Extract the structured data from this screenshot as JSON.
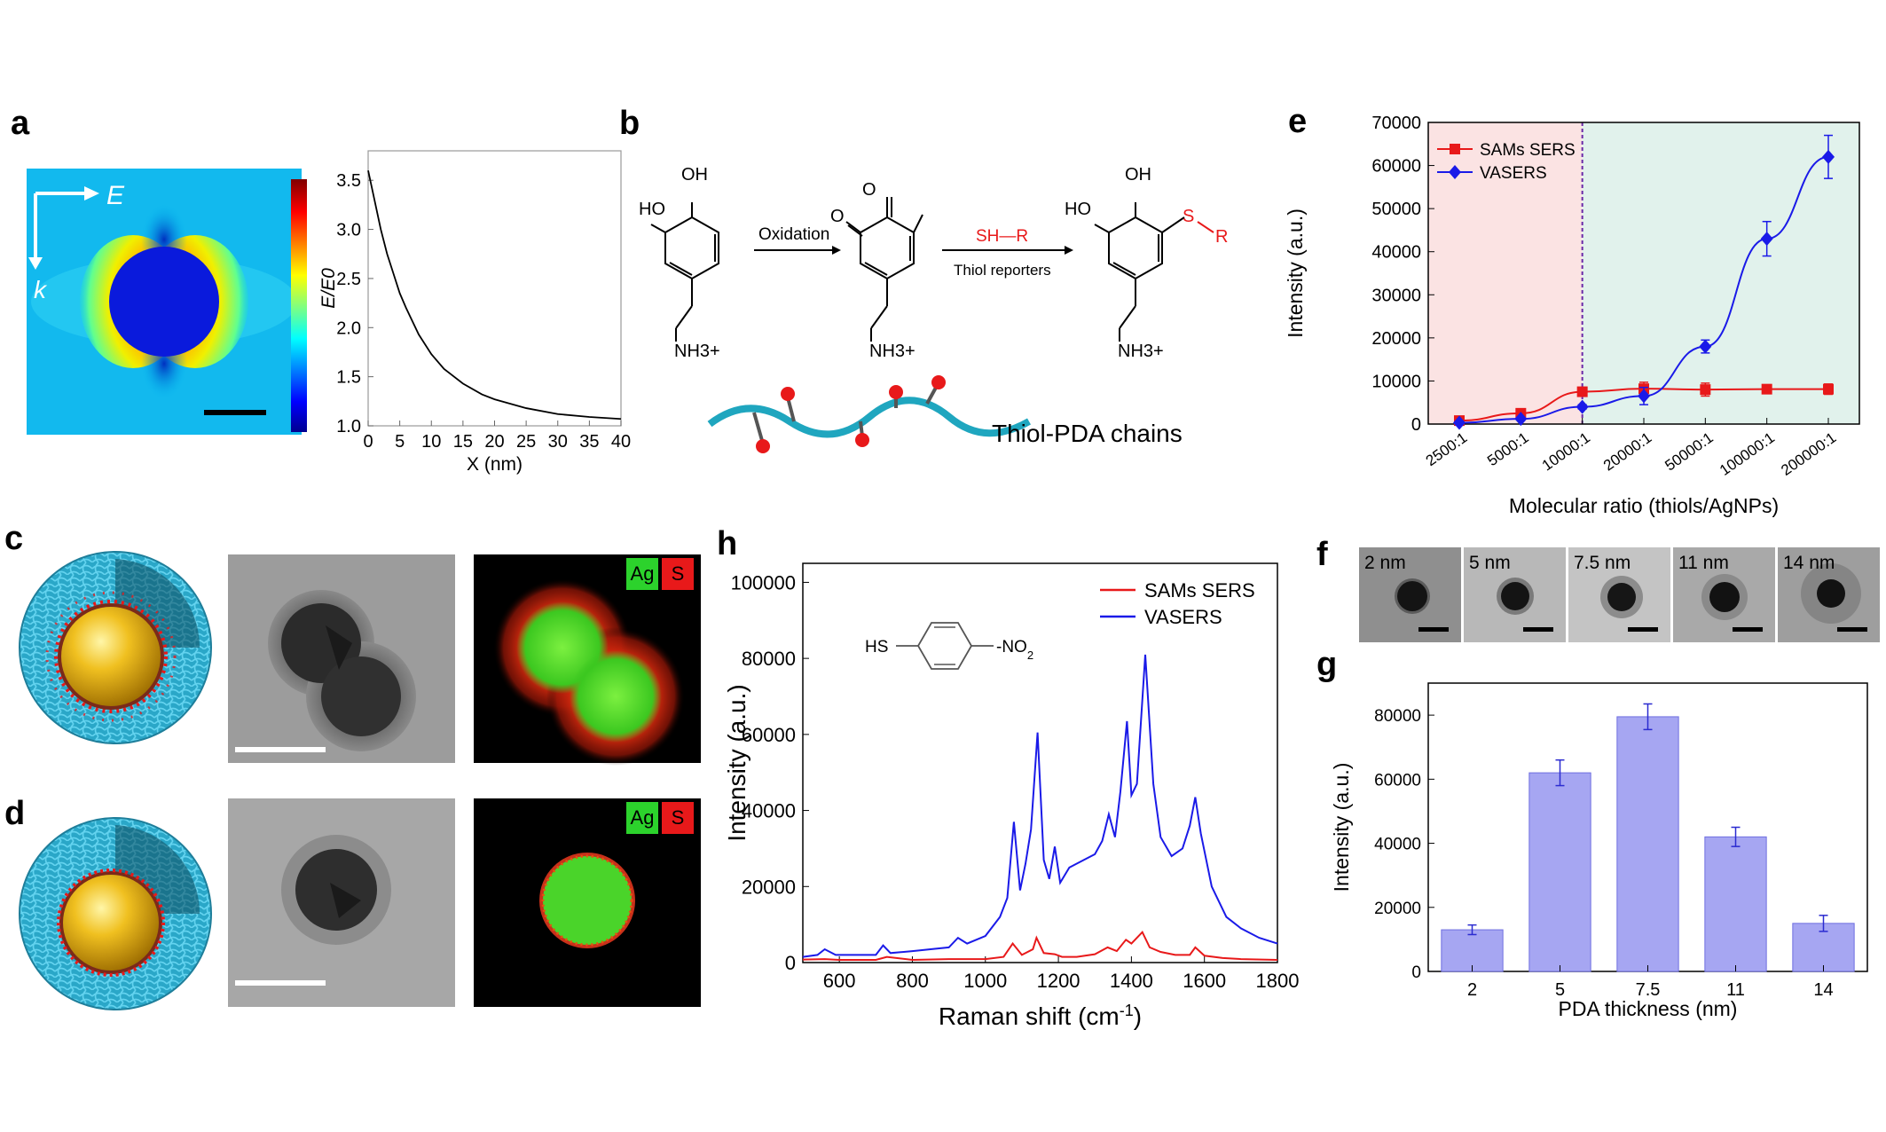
{
  "panels": {
    "a": "a",
    "b": "b",
    "c": "c",
    "d": "d",
    "e": "e",
    "f": "f",
    "g": "g",
    "h": "h"
  },
  "panel_a": {
    "field_label": "E",
    "k_label": "k",
    "plot": {
      "ylabel": "E/E0",
      "xlabel": "X (nm)",
      "yticks": [
        "1.0",
        "1.5",
        "2.0",
        "2.5",
        "3.0",
        "3.5"
      ],
      "xticks": [
        "0",
        "5",
        "10",
        "15",
        "20",
        "25",
        "30",
        "35",
        "40"
      ]
    }
  },
  "panel_b": {
    "oxidation": "Oxidation",
    "thiol_reagent": "SH—R",
    "thiol_reporters": "Thiol reporters",
    "oh": "OH",
    "ho": "HO",
    "o": "O",
    "nh3": "NH3+",
    "s": "S",
    "r": "R",
    "chains_label": "Thiol-PDA chains"
  },
  "panel_cd": {
    "ag": "Ag",
    "s": "S"
  },
  "panel_f": {
    "thicknesses": [
      "2 nm",
      "5 nm",
      "7.5 nm",
      "11 nm",
      "14 nm"
    ]
  },
  "colors": {
    "sams": "#e8191a",
    "vasers": "#1a1ae8",
    "bar": "#a6a6f2",
    "bar_edge": "#6f6fe0"
  },
  "chart_data": [
    {
      "id": "a-right",
      "type": "line",
      "xlabel": "X (nm)",
      "ylabel": "E/E0",
      "xlim": [
        0,
        40
      ],
      "ylim": [
        1.0,
        3.8
      ],
      "x": [
        0,
        1,
        2,
        3,
        4,
        5,
        6,
        8,
        10,
        12,
        15,
        18,
        20,
        25,
        30,
        35,
        40
      ],
      "y": [
        3.6,
        3.3,
        3.0,
        2.75,
        2.55,
        2.35,
        2.2,
        1.93,
        1.73,
        1.58,
        1.43,
        1.32,
        1.27,
        1.18,
        1.12,
        1.09,
        1.07
      ]
    },
    {
      "id": "e",
      "type": "line",
      "xlabel": "Molecular ratio (thiols/AgNPs)",
      "ylabel": "Intensity (a.u.)",
      "categories": [
        "2500:1",
        "5000:1",
        "10000:1",
        "20000:1",
        "50000:1",
        "100000:1",
        "200000:1"
      ],
      "ylim": [
        0,
        70000
      ],
      "yticks": [
        "0",
        "10000",
        "20000",
        "30000",
        "40000",
        "50000",
        "60000",
        "70000"
      ],
      "series": [
        {
          "name": "SAMs SERS",
          "values": [
            800,
            2500,
            7500,
            8200,
            8000,
            8100,
            8100
          ],
          "errors": [
            300,
            300,
            900,
            1500,
            1500,
            1000,
            1200
          ]
        },
        {
          "name": "VASERS",
          "values": [
            300,
            1200,
            4000,
            6500,
            18000,
            43000,
            62000
          ],
          "errors": [
            300,
            300,
            500,
            2000,
            1500,
            4000,
            5000
          ]
        }
      ],
      "legend": "top-left"
    },
    {
      "id": "g",
      "type": "bar",
      "xlabel": "PDA thickness (nm)",
      "ylabel": "Intensity (a.u.)",
      "categories": [
        "2",
        "5",
        "7.5",
        "11",
        "14"
      ],
      "values": [
        13000,
        62000,
        79500,
        42000,
        15000
      ],
      "errors": [
        1500,
        4000,
        4000,
        3000,
        2500
      ],
      "ylim": [
        0,
        90000
      ],
      "yticks": [
        "0",
        "20000",
        "40000",
        "60000",
        "80000"
      ]
    },
    {
      "id": "h",
      "type": "line",
      "xlabel": "Raman shift (cm-1)",
      "ylabel": "Intensity (a.u.)",
      "xlim": [
        500,
        1800
      ],
      "ylim": [
        0,
        105000
      ],
      "xticks": [
        "600",
        "800",
        "1000",
        "1200",
        "1400",
        "1600",
        "1800"
      ],
      "yticks": [
        "0",
        "20000",
        "40000",
        "60000",
        "80000",
        "100000"
      ],
      "legend": "top-right",
      "inset": {
        "hs": "HS",
        "no2": "NO2"
      },
      "series": [
        {
          "name": "SAMs SERS",
          "x": [
            500,
            560,
            600,
            700,
            730,
            800,
            900,
            1000,
            1050,
            1075,
            1100,
            1130,
            1140,
            1160,
            1190,
            1210,
            1250,
            1300,
            1335,
            1360,
            1385,
            1400,
            1430,
            1450,
            1480,
            1520,
            1560,
            1575,
            1600,
            1650,
            1700,
            1800
          ],
          "y": [
            800,
            900,
            700,
            700,
            1500,
            700,
            900,
            900,
            1500,
            5000,
            2000,
            3500,
            6500,
            2500,
            2200,
            1500,
            1500,
            2200,
            4000,
            3000,
            6000,
            5000,
            8000,
            4000,
            2800,
            2000,
            2000,
            4000,
            1800,
            1200,
            900,
            700
          ]
        },
        {
          "name": "VASERS",
          "x": [
            500,
            540,
            560,
            590,
            620,
            700,
            720,
            740,
            800,
            850,
            900,
            925,
            950,
            1000,
            1040,
            1060,
            1078,
            1095,
            1110,
            1125,
            1143,
            1160,
            1175,
            1190,
            1205,
            1230,
            1270,
            1300,
            1320,
            1338,
            1355,
            1370,
            1388,
            1400,
            1415,
            1438,
            1460,
            1480,
            1510,
            1540,
            1560,
            1575,
            1590,
            1620,
            1660,
            1700,
            1750,
            1800
          ],
          "y": [
            1500,
            2000,
            3500,
            2000,
            2000,
            2000,
            4500,
            2500,
            3000,
            3500,
            4000,
            6500,
            5000,
            7000,
            12000,
            17000,
            37000,
            19000,
            26000,
            35000,
            60500,
            27000,
            22000,
            30500,
            21000,
            25000,
            27000,
            28500,
            32000,
            39000,
            33000,
            45000,
            63500,
            44000,
            47000,
            81000,
            47000,
            33000,
            28000,
            30000,
            36000,
            43500,
            34000,
            20000,
            12000,
            9000,
            6500,
            5000
          ]
        }
      ]
    }
  ]
}
